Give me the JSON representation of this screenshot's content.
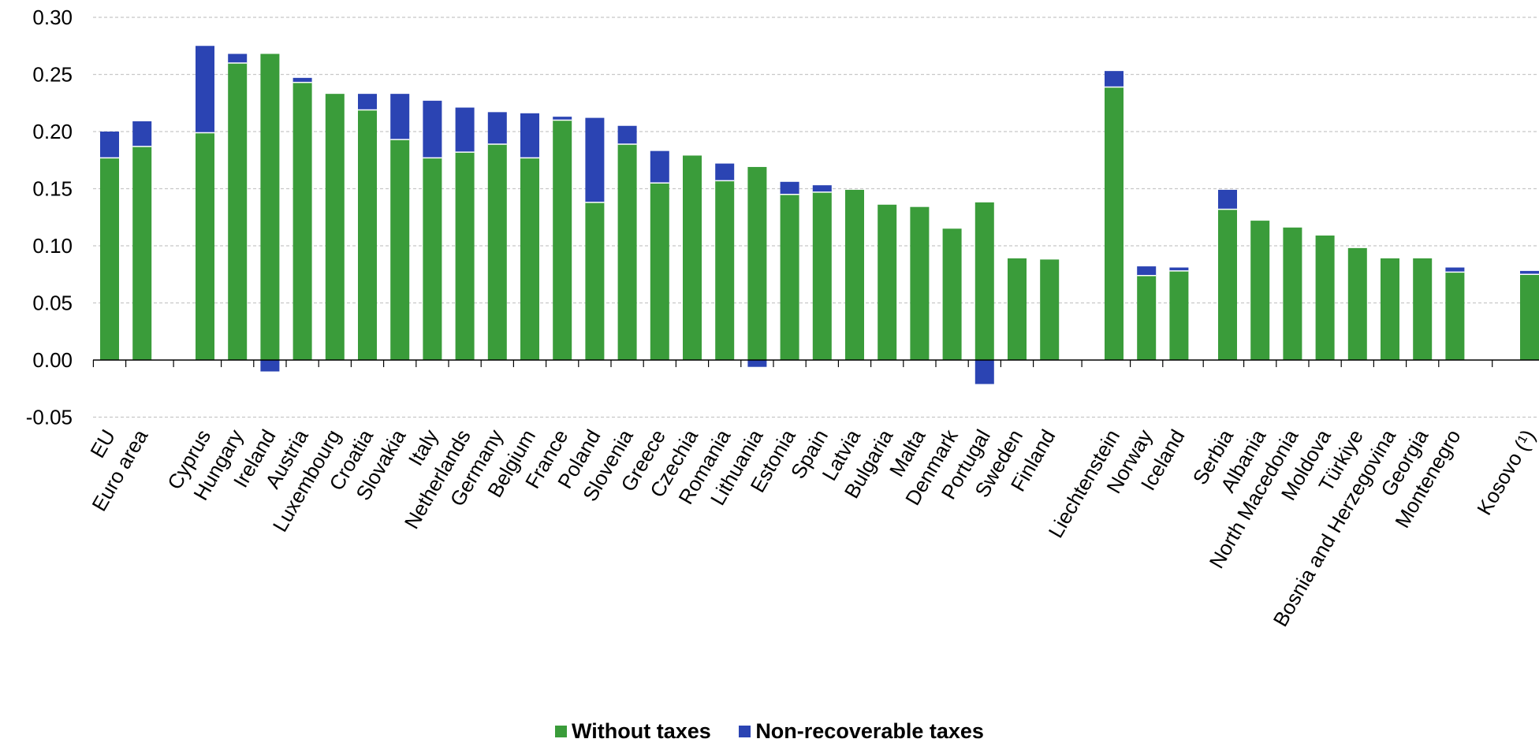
{
  "chart_data": {
    "type": "bar",
    "stacked": true,
    "categories": [
      "EU",
      "Euro area",
      "Cyprus",
      "Hungary",
      "Ireland",
      "Austria",
      "Luxembourg",
      "Croatia",
      "Slovakia",
      "Italy",
      "Netherlands",
      "Germany",
      "Belgium",
      "France",
      "Poland",
      "Slovenia",
      "Greece",
      "Czechia",
      "Romania",
      "Lithuania",
      "Estonia",
      "Spain",
      "Latvia",
      "Bulgaria",
      "Malta",
      "Denmark",
      "Portugal",
      "Sweden",
      "Finland",
      "Liechtenstein",
      "Norway",
      "Iceland",
      "Serbia",
      "Albania",
      "North Macedonia",
      "Moldova",
      "Türkiye",
      "Bosnia and Herzegovina",
      "Georgia",
      "Montenegro",
      "Kosovo (¹)"
    ],
    "groups_after": [
      1,
      28,
      31,
      39
    ],
    "series": [
      {
        "name": "Without taxes",
        "color": "#3a9c3a",
        "values": [
          0.177,
          0.187,
          0.199,
          0.26,
          0.268,
          0.243,
          0.233,
          0.219,
          0.193,
          0.177,
          0.182,
          0.189,
          0.177,
          0.21,
          0.138,
          0.189,
          0.155,
          0.179,
          0.157,
          0.169,
          0.145,
          0.147,
          0.149,
          0.136,
          0.134,
          0.115,
          0.138,
          0.089,
          0.088,
          0.239,
          0.074,
          0.078,
          0.132,
          0.122,
          0.116,
          0.109,
          0.098,
          0.089,
          0.089,
          0.077,
          0.075
        ]
      },
      {
        "name": "Non-recoverable taxes",
        "color": "#2b44b3",
        "values": [
          0.023,
          0.022,
          0.076,
          0.008,
          -0.01,
          0.004,
          0.0,
          0.014,
          0.04,
          0.05,
          0.039,
          0.028,
          0.039,
          0.003,
          0.074,
          0.016,
          0.028,
          0.0,
          0.015,
          -0.006,
          0.011,
          0.006,
          0.0,
          0.0,
          0.0,
          0.0,
          -0.021,
          0.0,
          0.0,
          0.014,
          0.008,
          0.003,
          0.017,
          0.0,
          0.0,
          0.0,
          0.0,
          0.0,
          0.0,
          0.004,
          0.003
        ]
      }
    ],
    "y_ticks": [
      "0.30",
      "0.25",
      "0.20",
      "0.15",
      "0.10",
      "0.05",
      "0.00",
      "-0.05"
    ],
    "ylim": [
      -0.05,
      0.3
    ],
    "grid": true,
    "legend_position": "bottom-center"
  }
}
